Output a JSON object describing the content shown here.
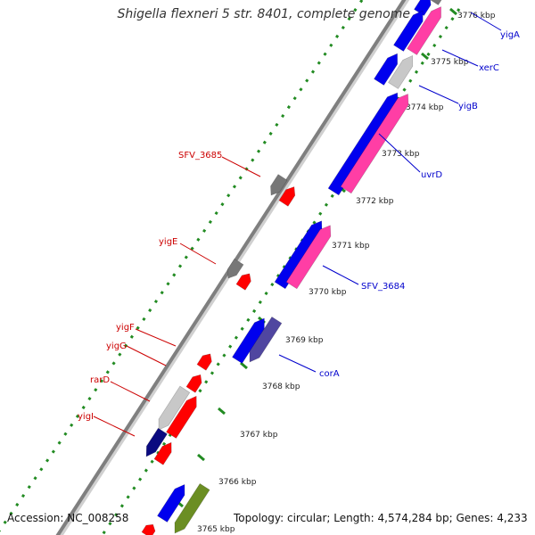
{
  "title": "Shigella flexneri 5 str. 8401, complete genome",
  "footer": {
    "accession": "Accession: NC_008258",
    "topology": "Topology: circular; Length: 4,574,284 bp; Genes: 4,233"
  },
  "colors": {
    "backbone": "#7f7f7f",
    "tick_dots": "#228b22",
    "forward_label": "#0000cc",
    "reverse_label": "#cc0000",
    "ruler_text": "#222222",
    "cds_blue": "#0000ee",
    "cds_pink": "#ff3ea5",
    "cds_red": "#ff0000",
    "cds_gray": "#777777",
    "cds_silver": "#c8c8c8",
    "cds_slate": "#5046a0",
    "cds_navy": "#0a0a80",
    "cds_olive": "#6b8e23"
  },
  "ruler": [
    {
      "label": "3776 kbp"
    },
    {
      "label": "3775 kbp"
    },
    {
      "label": "3774 kbp"
    },
    {
      "label": "3773 kbp"
    },
    {
      "label": "3772 kbp"
    },
    {
      "label": "3771 kbp"
    },
    {
      "label": "3770 kbp"
    },
    {
      "label": "3769 kbp"
    },
    {
      "label": "3768 kbp"
    },
    {
      "label": "3767 kbp"
    },
    {
      "label": "3766 kbp"
    },
    {
      "label": "3765 kbp"
    }
  ],
  "forward_labels": [
    {
      "text": "yigA"
    },
    {
      "text": "xerC"
    },
    {
      "text": "yigB"
    },
    {
      "text": "uvrD"
    },
    {
      "text": "SFV_3684"
    },
    {
      "text": "corA"
    }
  ],
  "reverse_labels": [
    {
      "text": "SFV_3685"
    },
    {
      "text": "yigE"
    },
    {
      "text": "yigF"
    },
    {
      "text": "yigG"
    },
    {
      "text": "rarD"
    },
    {
      "text": "yigI"
    }
  ]
}
